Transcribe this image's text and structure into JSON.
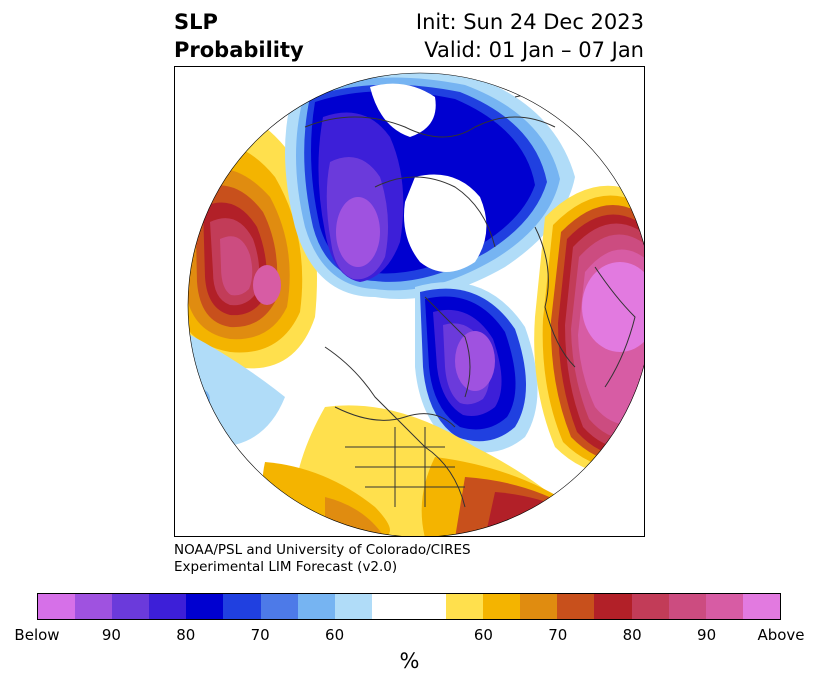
{
  "title": {
    "left_line1": "SLP",
    "left_line2": "Probability",
    "right_line1": "Init: Sun 24 Dec 2023",
    "right_line2": "Valid: 01 Jan – 07 Jan"
  },
  "credit": {
    "line1": "NOAA/PSL and University of Colorado/CIRES",
    "line2": "Experimental LIM Forecast (v2.0)"
  },
  "colorbar": {
    "colors": [
      "#d670e8",
      "#9f52e0",
      "#6b3adb",
      "#3d1fd8",
      "#0000d0",
      "#2040e0",
      "#4d7ae8",
      "#76b4f2",
      "#b0dcf8",
      "#ffffff",
      "#ffffff",
      "#ffe04d",
      "#f4b400",
      "#e08c10",
      "#c8501c",
      "#b22028",
      "#c23c58",
      "#cc4c80",
      "#d75ca4",
      "#e27ae0"
    ],
    "tick_labels": [
      "Below",
      "90",
      "80",
      "70",
      "60",
      "60",
      "70",
      "80",
      "90",
      "Above"
    ],
    "unit": "%"
  },
  "map": {
    "projection": "north-polar-stereographic",
    "features": [
      "coastlines",
      "country-borders",
      "us-state-borders"
    ],
    "anomalies": [
      {
        "region": "Arctic / Siberia",
        "category": "Below",
        "peak_color": "#6b3adb"
      },
      {
        "region": "North Atlantic / Greenland",
        "category": "Below",
        "peak_color": "#9f52e0"
      },
      {
        "region": "North Pacific",
        "category": "Above",
        "peak_color": "#cc4c80"
      },
      {
        "region": "Europe",
        "category": "Above",
        "peak_color": "#e27ae0"
      },
      {
        "region": "Subtropical Atlantic",
        "category": "Above",
        "peak_color": "#b22028"
      },
      {
        "region": "United States",
        "category": "Above",
        "peak_color": "#ffe04d"
      }
    ]
  }
}
